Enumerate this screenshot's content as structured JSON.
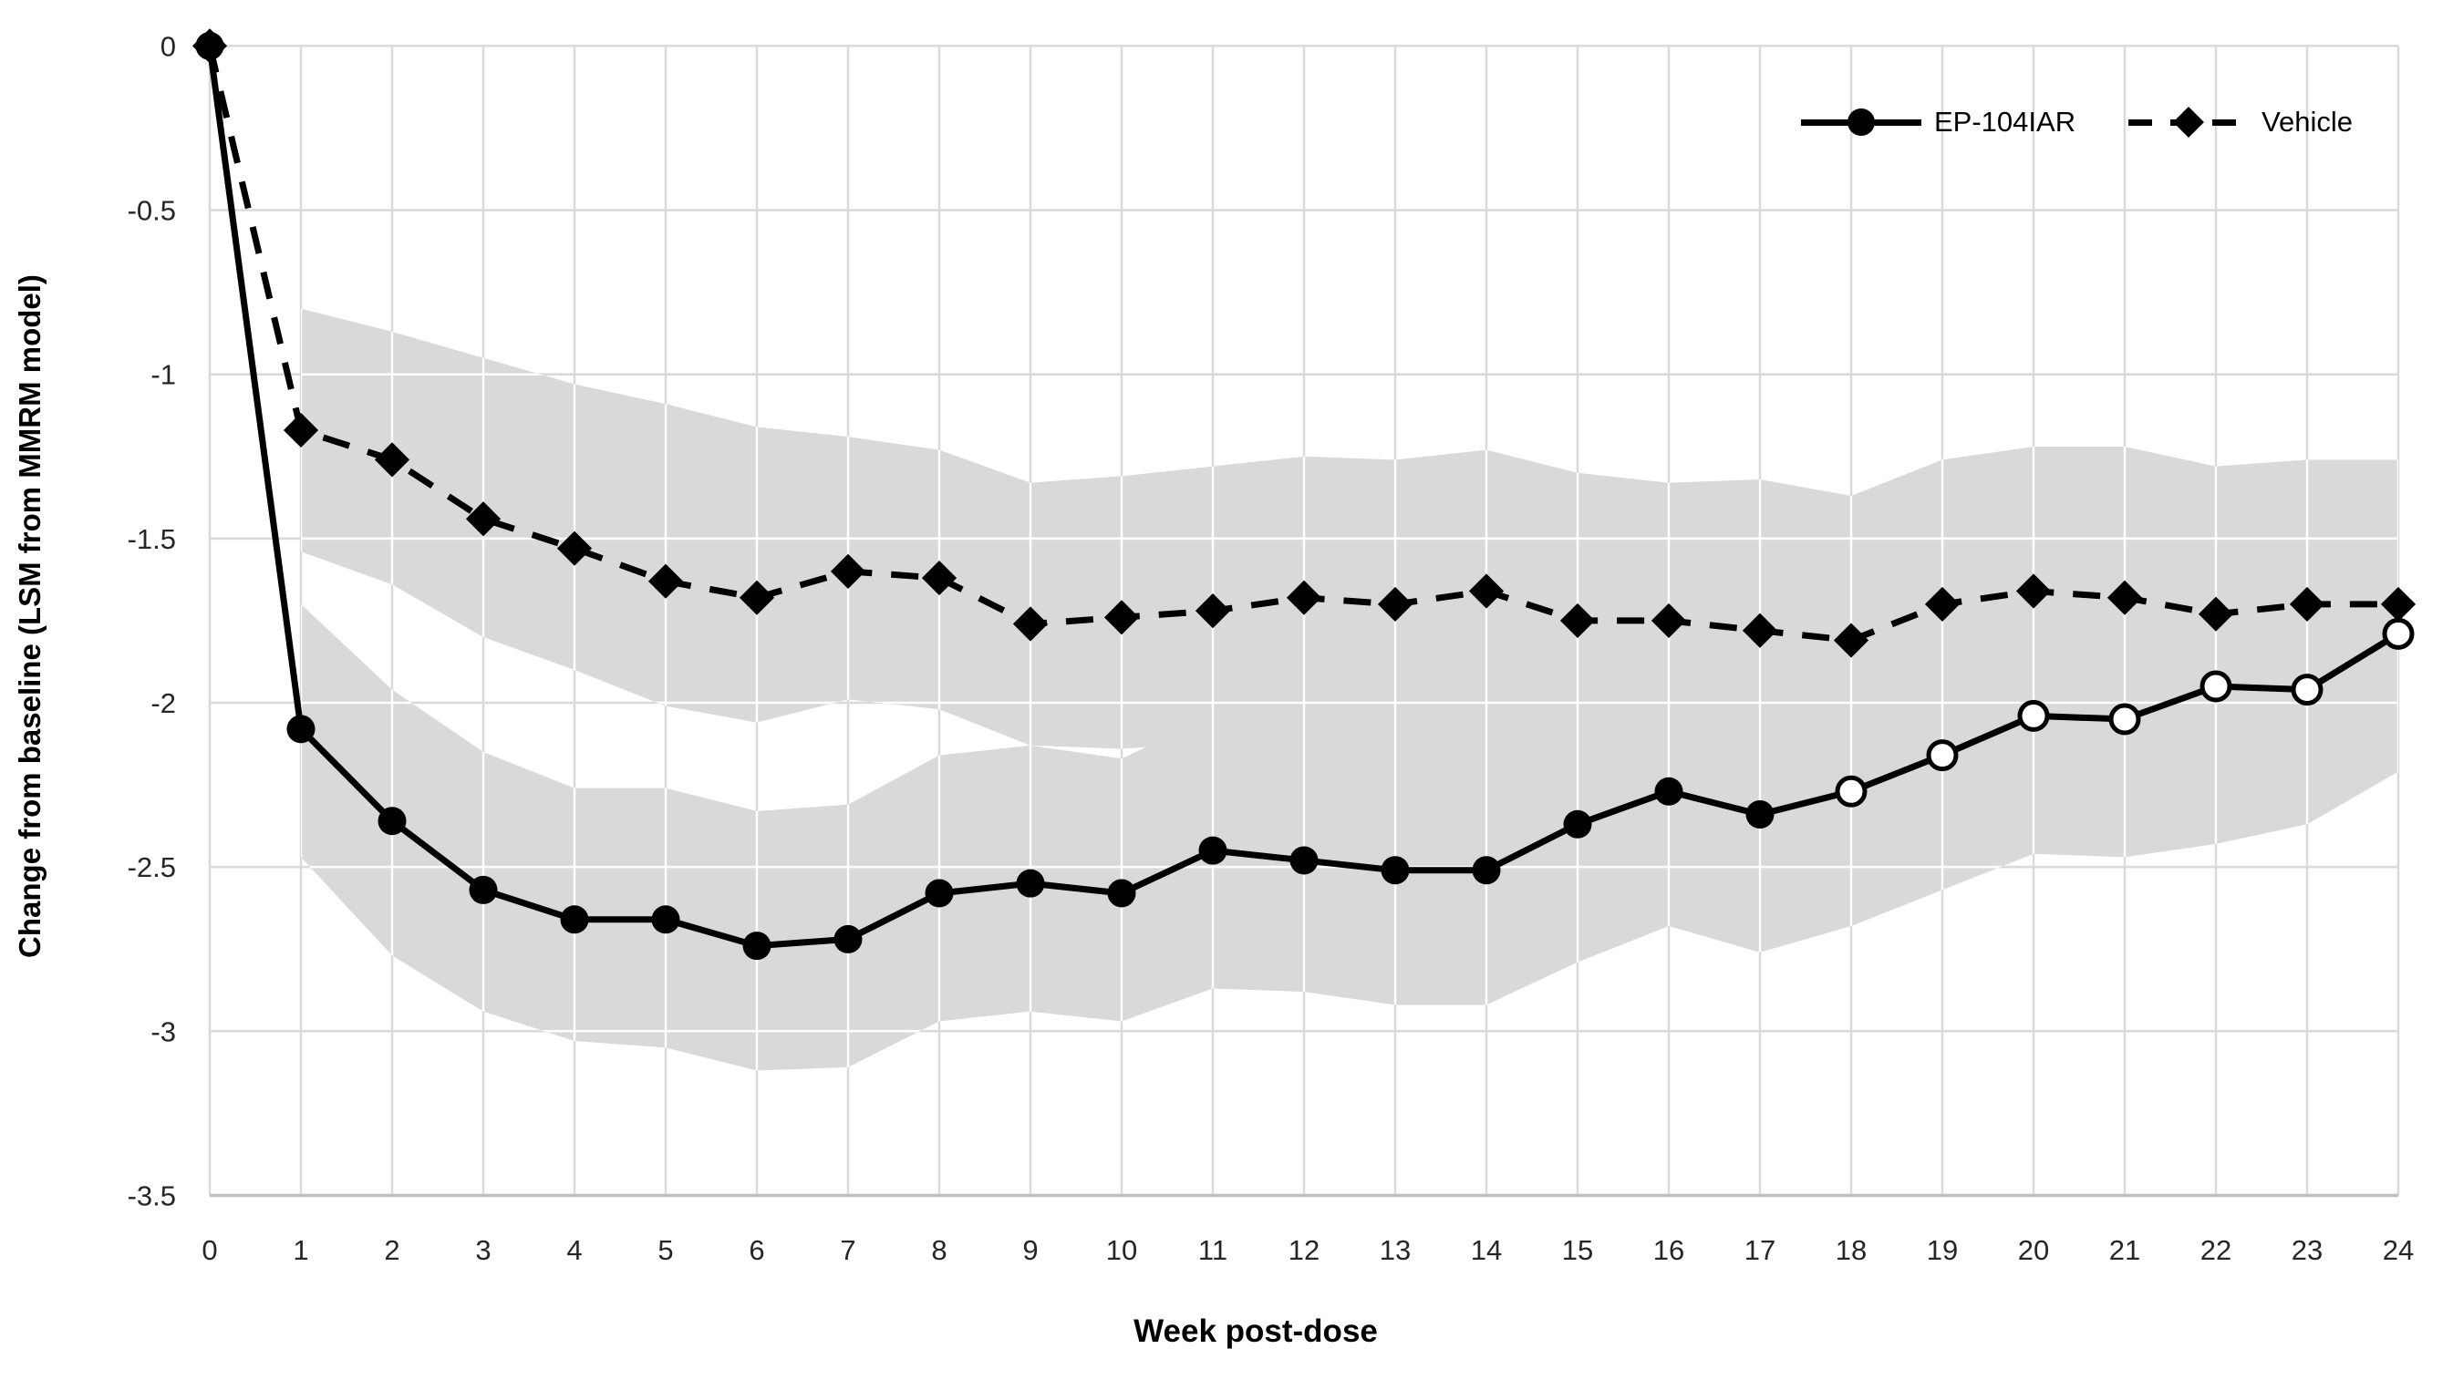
{
  "figure": {
    "background": "#ffffff",
    "grid_color": "#d9d9d9",
    "grid_over_band_color": "#ffffff",
    "axis_line_color": "#bfbfbf",
    "band_color": "#d9d9d9",
    "series_color": "#000000"
  },
  "y_axis": {
    "title": "Change from baseline (LSM from MMRM model)",
    "tick_labels": [
      "0",
      "-0.5",
      "-1",
      "-1.5",
      "-2",
      "-2.5",
      "-3",
      "-3.5"
    ]
  },
  "x_axis": {
    "title": "Week post-dose",
    "tick_labels": [
      "0",
      "1",
      "2",
      "3",
      "4",
      "5",
      "6",
      "7",
      "8",
      "9",
      "10",
      "11",
      "12",
      "13",
      "14",
      "15",
      "16",
      "17",
      "18",
      "19",
      "20",
      "21",
      "22",
      "23",
      "24"
    ]
  },
  "legend": {
    "items": [
      {
        "label": "EP-104IAR",
        "line": "solid",
        "marker": "filled-circle"
      },
      {
        "label": "Vehicle",
        "line": "dashed",
        "marker": "filled-diamond"
      }
    ]
  },
  "chart_data": {
    "type": "line",
    "title": "",
    "xlabel": "Week post-dose",
    "ylabel": "Change from baseline (LSM from MMRM model)",
    "xlim": [
      0,
      24
    ],
    "ylim": [
      -3.5,
      0
    ],
    "x_tick_step": 1,
    "y_tick_step": 0.5,
    "grid": true,
    "legend_position": "top-right",
    "x": [
      0,
      1,
      2,
      3,
      4,
      5,
      6,
      7,
      8,
      9,
      10,
      11,
      12,
      13,
      14,
      15,
      16,
      17,
      18,
      19,
      20,
      21,
      22,
      23,
      24
    ],
    "series": [
      {
        "name": "EP-104IAR",
        "line_style": "solid",
        "marker": "circle",
        "open_marker_from_x": 18,
        "values": [
          0,
          -2.08,
          -2.36,
          -2.57,
          -2.66,
          -2.66,
          -2.74,
          -2.72,
          -2.58,
          -2.55,
          -2.58,
          -2.45,
          -2.48,
          -2.51,
          -2.51,
          -2.37,
          -2.27,
          -2.34,
          -2.27,
          -2.16,
          -2.04,
          -2.05,
          -1.95,
          -1.96,
          -1.79
        ]
      },
      {
        "name": "Vehicle",
        "line_style": "dashed",
        "marker": "diamond",
        "values": [
          0,
          -1.17,
          -1.26,
          -1.44,
          -1.53,
          -1.63,
          -1.68,
          -1.6,
          -1.62,
          -1.76,
          -1.74,
          -1.72,
          -1.68,
          -1.7,
          -1.66,
          -1.75,
          -1.75,
          -1.78,
          -1.81,
          -1.7,
          -1.66,
          -1.68,
          -1.73,
          -1.7,
          -1.7
        ]
      }
    ],
    "confidence_bands": [
      {
        "series": "Vehicle",
        "x": [
          1,
          2,
          3,
          4,
          5,
          6,
          7,
          8,
          9,
          10,
          11,
          12,
          13,
          14,
          15,
          16,
          17,
          18,
          19,
          20,
          21,
          22,
          23,
          24
        ],
        "upper": [
          -0.8,
          -0.87,
          -0.95,
          -1.03,
          -1.09,
          -1.16,
          -1.19,
          -1.23,
          -1.33,
          -1.31,
          -1.28,
          -1.25,
          -1.26,
          -1.23,
          -1.3,
          -1.33,
          -1.32,
          -1.37,
          -1.26,
          -1.22,
          -1.22,
          -1.28,
          -1.26,
          -1.26
        ],
        "lower": [
          -1.54,
          -1.64,
          -1.8,
          -1.9,
          -2.01,
          -2.06,
          -1.99,
          -2.02,
          -2.13,
          -2.14,
          -2.12,
          -2.1,
          -2.12,
          -2.1,
          -2.16,
          -2.16,
          -2.18,
          -2.22,
          -2.12,
          -2.08,
          -2.1,
          -2.14,
          -2.12,
          -2.14
        ]
      },
      {
        "series": "EP-104IAR",
        "x": [
          1,
          2,
          3,
          4,
          5,
          6,
          7,
          8,
          9,
          10,
          11,
          12,
          13,
          14,
          15,
          16,
          17,
          18,
          19,
          20,
          21,
          22,
          23,
          24
        ],
        "upper": [
          -1.7,
          -1.96,
          -2.15,
          -2.26,
          -2.26,
          -2.33,
          -2.31,
          -2.16,
          -2.13,
          -2.17,
          -2.04,
          -2.06,
          -2.1,
          -2.1,
          -1.96,
          -1.86,
          -1.94,
          -1.86,
          -1.74,
          -1.62,
          -1.63,
          -1.55,
          -1.56,
          -1.38
        ],
        "lower": [
          -2.47,
          -2.77,
          -2.94,
          -3.03,
          -3.05,
          -3.12,
          -3.11,
          -2.97,
          -2.94,
          -2.97,
          -2.87,
          -2.88,
          -2.92,
          -2.92,
          -2.79,
          -2.68,
          -2.76,
          -2.68,
          -2.57,
          -2.46,
          -2.47,
          -2.43,
          -2.37,
          -2.21
        ]
      }
    ]
  }
}
